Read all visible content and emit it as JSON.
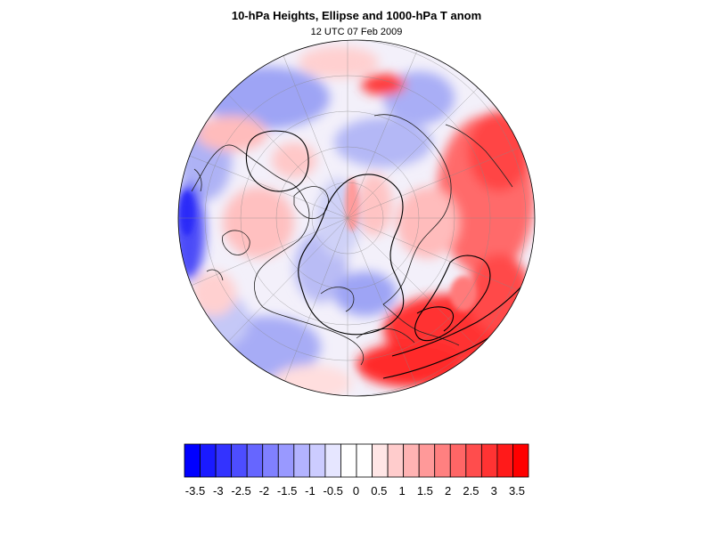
{
  "header": {
    "title": "10-hPa Heights, Ellipse and 1000-hPa T anom",
    "subtitle": "12 UTC 07 Feb 2009"
  },
  "map": {
    "projection": "orthographic, north polar",
    "field": "1000-hPa temperature anomaly",
    "contours": [
      "10-hPa height contours",
      "fitted ellipse"
    ]
  },
  "colorbar": {
    "labels": [
      "-3.5",
      "-3",
      "-2.5",
      "-2",
      "-1.5",
      "-1",
      "-0.5",
      "0",
      "0.5",
      "1",
      "1.5",
      "2",
      "2.5",
      "3",
      "3.5"
    ],
    "colors": [
      "#0000ff",
      "#1a1aff",
      "#3333ff",
      "#4d4dff",
      "#6666ff",
      "#8080ff",
      "#9999ff",
      "#b3b3ff",
      "#ccccff",
      "#e6e6ff",
      "#ffffff",
      "#ffffff",
      "#ffe6e6",
      "#ffcccc",
      "#ffb3b3",
      "#ff9999",
      "#ff8080",
      "#ff6666",
      "#ff4d4d",
      "#ff3333",
      "#ff1a1a",
      "#ff0000"
    ]
  }
}
